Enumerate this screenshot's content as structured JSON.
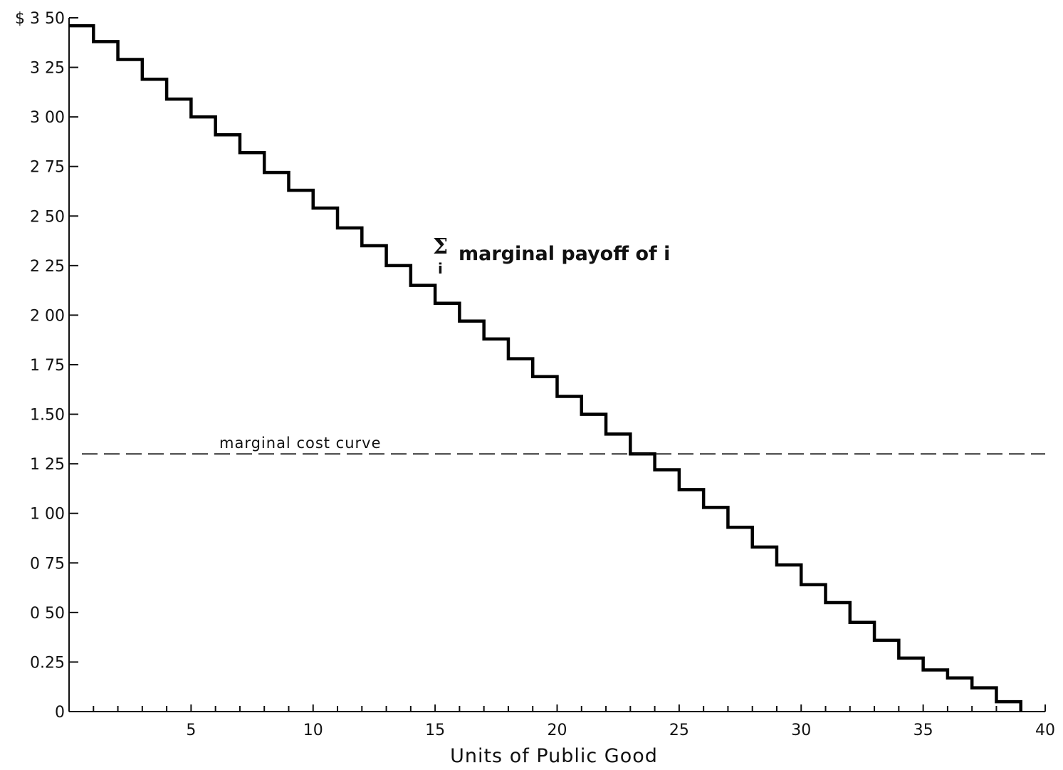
{
  "chart_data": {
    "type": "line",
    "step": true,
    "title": "",
    "xlabel": "Units of Public Good",
    "ylabel": "",
    "xlim": [
      0,
      40
    ],
    "ylim": [
      0,
      3.5
    ],
    "x_tick_labels": [
      {
        "value": 5,
        "label": "5"
      },
      {
        "value": 10,
        "label": "10"
      },
      {
        "value": 15,
        "label": "15"
      },
      {
        "value": 20,
        "label": "20"
      },
      {
        "value": 25,
        "label": "25"
      },
      {
        "value": 30,
        "label": "30"
      },
      {
        "value": 35,
        "label": "35"
      },
      {
        "value": 40,
        "label": "40"
      }
    ],
    "y_tick_labels": [
      {
        "value": 0,
        "label": "0"
      },
      {
        "value": 0.25,
        "label": "0.25"
      },
      {
        "value": 0.5,
        "label": "0 50"
      },
      {
        "value": 0.75,
        "label": "0 75"
      },
      {
        "value": 1.0,
        "label": "1 00"
      },
      {
        "value": 1.25,
        "label": "1 25"
      },
      {
        "value": 1.5,
        "label": "1.50"
      },
      {
        "value": 1.75,
        "label": "1 75"
      },
      {
        "value": 2.0,
        "label": "2 00"
      },
      {
        "value": 2.25,
        "label": "2 25"
      },
      {
        "value": 2.5,
        "label": "2 50"
      },
      {
        "value": 2.75,
        "label": "2 75"
      },
      {
        "value": 3.0,
        "label": "3 00"
      },
      {
        "value": 3.25,
        "label": "3 25"
      },
      {
        "value": 3.5,
        "label": "$ 3 50"
      }
    ],
    "grid": false,
    "series": [
      {
        "kind": "step",
        "values": [
          3.46,
          3.38,
          3.29,
          3.19,
          3.09,
          3.0,
          2.91,
          2.82,
          2.72,
          2.63,
          2.54,
          2.44,
          2.35,
          2.25,
          2.15,
          2.06,
          1.97,
          1.88,
          1.78,
          1.69,
          1.59,
          1.5,
          1.4,
          1.3,
          1.22,
          1.12,
          1.03,
          0.93,
          0.83,
          0.74,
          0.64,
          0.55,
          0.45,
          0.36,
          0.27,
          0.21,
          0.17,
          0.12,
          0.05
        ]
      },
      {
        "kind": "dashed-horizontal",
        "value": 1.3
      }
    ],
    "annotations": {
      "payoff_sigma": "Σ",
      "payoff_sub": "i",
      "payoff_text": "marginal payoff of i",
      "cost_text": "marginal cost curve"
    }
  }
}
